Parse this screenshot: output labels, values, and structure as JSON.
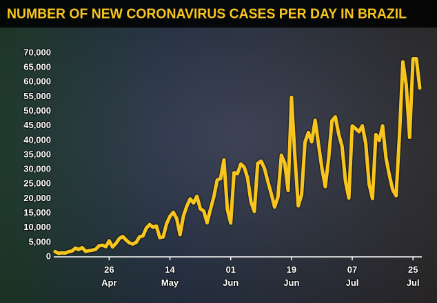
{
  "chart_data": {
    "type": "line",
    "title": "NUMBER OF NEW CORONAVIRUS CASES PER DAY IN BRAZIL",
    "categories": [
      "10 Apr",
      "11 Apr",
      "12 Apr",
      "13 Apr",
      "14 Apr",
      "15 Apr",
      "16 Apr",
      "17 Apr",
      "18 Apr",
      "19 Apr",
      "20 Apr",
      "21 Apr",
      "22 Apr",
      "23 Apr",
      "24 Apr",
      "25 Apr",
      "26 Apr",
      "27 Apr",
      "28 Apr",
      "29 Apr",
      "30 Apr",
      "01 May",
      "02 May",
      "03 May",
      "04 May",
      "05 May",
      "06 May",
      "07 May",
      "08 May",
      "09 May",
      "10 May",
      "11 May",
      "12 May",
      "13 May",
      "14 May",
      "15 May",
      "16 May",
      "17 May",
      "18 May",
      "19 May",
      "20 May",
      "21 May",
      "22 May",
      "23 May",
      "24 May",
      "25 May",
      "26 May",
      "27 May",
      "28 May",
      "29 May",
      "30 May",
      "31 May",
      "01 Jun",
      "02 Jun",
      "03 Jun",
      "04 Jun",
      "05 Jun",
      "06 Jun",
      "07 Jun",
      "08 Jun",
      "09 Jun",
      "10 Jun",
      "11 Jun",
      "12 Jun",
      "13 Jun",
      "14 Jun",
      "15 Jun",
      "16 Jun",
      "17 Jun",
      "18 Jun",
      "19 Jun",
      "20 Jun",
      "21 Jun",
      "22 Jun",
      "23 Jun",
      "24 Jun",
      "25 Jun",
      "26 Jun",
      "27 Jun",
      "28 Jun",
      "29 Jun",
      "30 Jun",
      "01 Jul",
      "02 Jul",
      "03 Jul",
      "04 Jul",
      "05 Jul",
      "06 Jul",
      "07 Jul",
      "08 Jul",
      "09 Jul",
      "10 Jul",
      "11 Jul",
      "12 Jul",
      "13 Jul",
      "14 Jul",
      "15 Jul",
      "16 Jul",
      "17 Jul",
      "18 Jul",
      "19 Jul",
      "20 Jul",
      "21 Jul",
      "22 Jul",
      "23 Jul",
      "24 Jul",
      "25 Jul",
      "26 Jul",
      "27 Jul"
    ],
    "series": [
      {
        "name": "New cases",
        "color": "#f7c51e",
        "values": [
          1800,
          1200,
          1400,
          1300,
          1800,
          2000,
          3000,
          2500,
          3200,
          1900,
          2100,
          2300,
          2600,
          3800,
          4000,
          3500,
          5500,
          3400,
          4600,
          6300,
          7000,
          5800,
          4800,
          4400,
          5000,
          6900,
          7200,
          9900,
          11100,
          10200,
          10600,
          6600,
          6800,
          11300,
          13900,
          15300,
          13200,
          7600,
          14000,
          17400,
          19900,
          18500,
          20800,
          16500,
          15800,
          11700,
          16300,
          20600,
          26400,
          26900,
          33300,
          16400,
          11600,
          28900,
          28600,
          31900,
          30800,
          27100,
          18900,
          15600,
          32100,
          32900,
          30400,
          25900,
          21700,
          17100,
          20600,
          34900,
          32200,
          22800,
          54800,
          34700,
          17500,
          21400,
          39400,
          42700,
          39500,
          46900,
          38700,
          30500,
          24100,
          33800,
          46700,
          48100,
          42200,
          37900,
          26000,
          20200,
          45000,
          44000,
          43000,
          45000,
          39000,
          25000,
          20000,
          42000,
          40000,
          45000,
          34000,
          28000,
          23000,
          21000,
          42000,
          67000,
          59000,
          41000,
          68000,
          68000,
          58000
        ]
      }
    ],
    "xticks": [
      "26 Apr",
      "14 May",
      "01 Jun",
      "19 Jun",
      "07 Jul",
      "25 Jul"
    ],
    "ylim": [
      0,
      70000
    ],
    "yticks": [
      0,
      {
        "value": 5000,
        "label": "5,000"
      },
      {
        "value": 10000,
        "label": "10,000"
      },
      {
        "value": 15000,
        "label": "15,000"
      },
      {
        "value": 20000,
        "label": "20,000"
      },
      {
        "value": 25000,
        "label": "25,000"
      },
      {
        "value": 30000,
        "label": "30,000"
      },
      {
        "value": 35000,
        "label": "35,000"
      },
      {
        "value": 40000,
        "label": "40,000"
      },
      {
        "value": 45000,
        "label": "45,000"
      },
      {
        "value": 50000,
        "label": "50,000"
      },
      {
        "value": 55000,
        "label": "55,000"
      },
      {
        "value": 60000,
        "label": "60,000"
      },
      {
        "value": 65000,
        "label": "65,000"
      },
      {
        "value": 70000,
        "label": "70,000"
      }
    ],
    "grid": false
  }
}
